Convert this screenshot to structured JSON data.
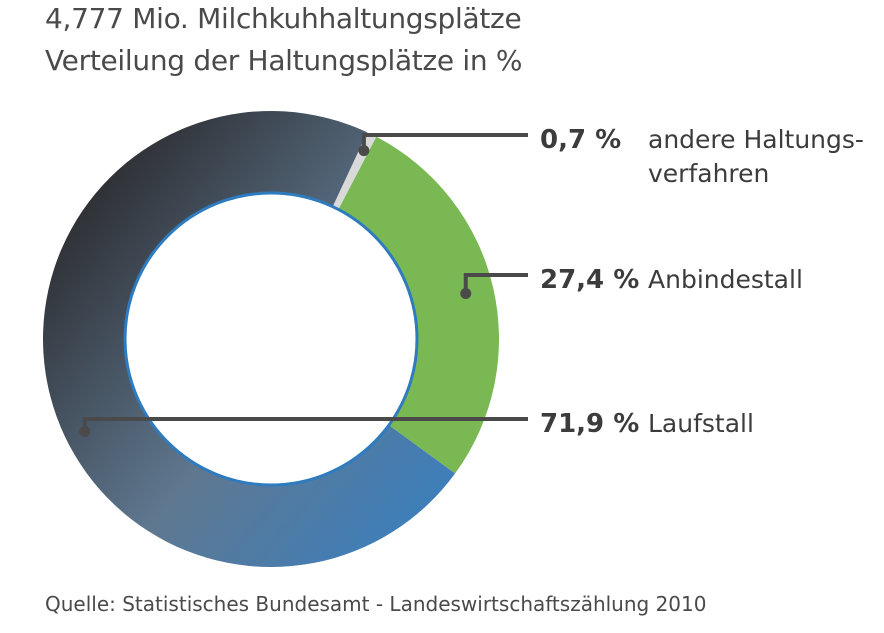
{
  "title": "4,777 Mio. Milchkuhhaltungsplätze",
  "subtitle": "Verteilung der Haltungsplätze in %",
  "source": "Quelle: Statistisches Bundesamt - Landeswirtschaftszählung 2010",
  "chart_data": {
    "type": "pie",
    "variant": "donut",
    "title": "4,777 Mio. Milchkuhhaltungsplätze",
    "subtitle": "Verteilung der Haltungsplätze in %",
    "total": "4,777 Mio.",
    "unit": "%",
    "slices": [
      {
        "label_lines": [
          "andere Haltungs-",
          "verfahren"
        ],
        "value": 0.7,
        "value_label": "0,7 %",
        "color": "#d9d9d9"
      },
      {
        "label_lines": [
          "Anbindestall"
        ],
        "value": 27.4,
        "value_label": "27,4 %",
        "color": "#7ab853"
      },
      {
        "label_lines": [
          "Laufstall"
        ],
        "value": 71.9,
        "value_label": "71,9 %",
        "color_start": "#3a7fbf",
        "color_end": "#2b2b2e"
      }
    ],
    "inner_ring_color": "#2e7bbf",
    "leader_color": "#4a4a4a"
  }
}
